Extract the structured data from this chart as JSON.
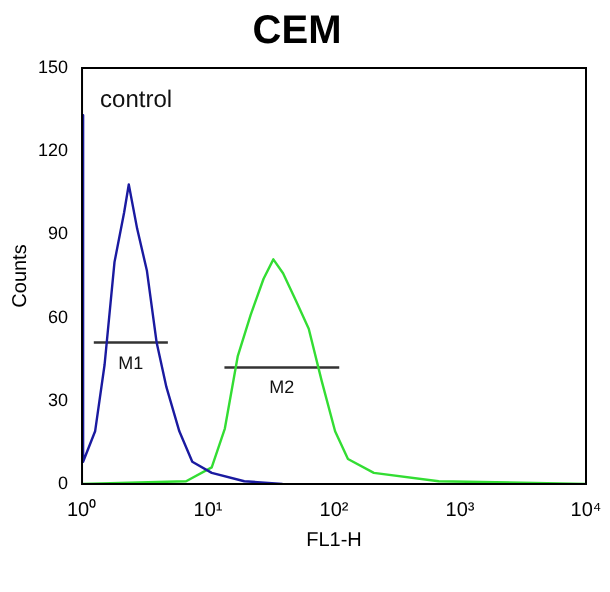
{
  "chart_data": {
    "type": "line",
    "title": "CEM",
    "xlabel": "FL1-H",
    "ylabel": "Counts",
    "log": "x",
    "xlim": [
      1,
      10000
    ],
    "xticks": [
      {
        "value": 1,
        "label": "10⁰"
      },
      {
        "value": 10,
        "label": "10¹"
      },
      {
        "value": 100,
        "label": "10²"
      },
      {
        "value": 1000,
        "label": "10³"
      },
      {
        "value": 10000,
        "label": "10⁴"
      }
    ],
    "ylim": [
      0,
      150
    ],
    "yticks": [
      0,
      30,
      60,
      90,
      120,
      150
    ],
    "grid": false,
    "legend": false,
    "marker": "none",
    "series": [
      {
        "color": "#1a1aa0",
        "x": [
          1,
          1.02,
          1.27,
          1.51,
          1.81,
          2.16,
          2.35,
          2.74,
          3.27,
          3.91,
          4.67,
          5.92,
          7.5,
          10.7,
          19.4,
          39
        ],
        "values": [
          133,
          8,
          19,
          43,
          80,
          98,
          108,
          92,
          77,
          51,
          35,
          19,
          8,
          4,
          1,
          0
        ]
      },
      {
        "color": "#33dd33",
        "x": [
          1,
          6.7,
          10.7,
          13.6,
          17.2,
          21.8,
          27.6,
          33,
          39.4,
          50,
          63,
          80,
          102,
          129,
          207,
          677,
          10000
        ],
        "values": [
          0,
          1,
          6,
          20,
          46,
          61,
          74,
          81,
          76,
          66,
          56,
          37,
          19,
          9,
          4,
          1,
          0
        ]
      },
      {
        "color": "#333333",
        "x": [
          1.24,
          4.8
        ],
        "values": [
          51,
          51
        ]
      },
      {
        "color": "#333333",
        "x": [
          13.5,
          110
        ],
        "values": [
          42,
          42
        ]
      }
    ],
    "annotations": [
      "control",
      {
        "text": "M1",
        "x": 2.44,
        "y": 51
      },
      {
        "text": "M2",
        "x": 38.5,
        "y": 42
      }
    ]
  }
}
